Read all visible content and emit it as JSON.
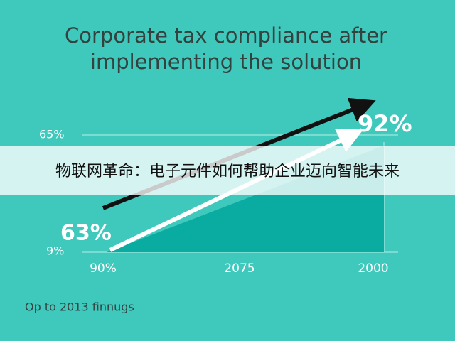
{
  "title": [
    "Corporate tax compliance after",
    "implementing the solution"
  ],
  "banner": "物联网革命：电子元件如何帮助企业迈向智能未来",
  "axis_labels": {
    "top": "65%",
    "bottom": "9%"
  },
  "callouts": {
    "start": "63%",
    "end": "92%"
  },
  "x_labels": [
    "90%",
    "2075",
    "2000"
  ],
  "footer": "Op to 2013 finnugs"
}
